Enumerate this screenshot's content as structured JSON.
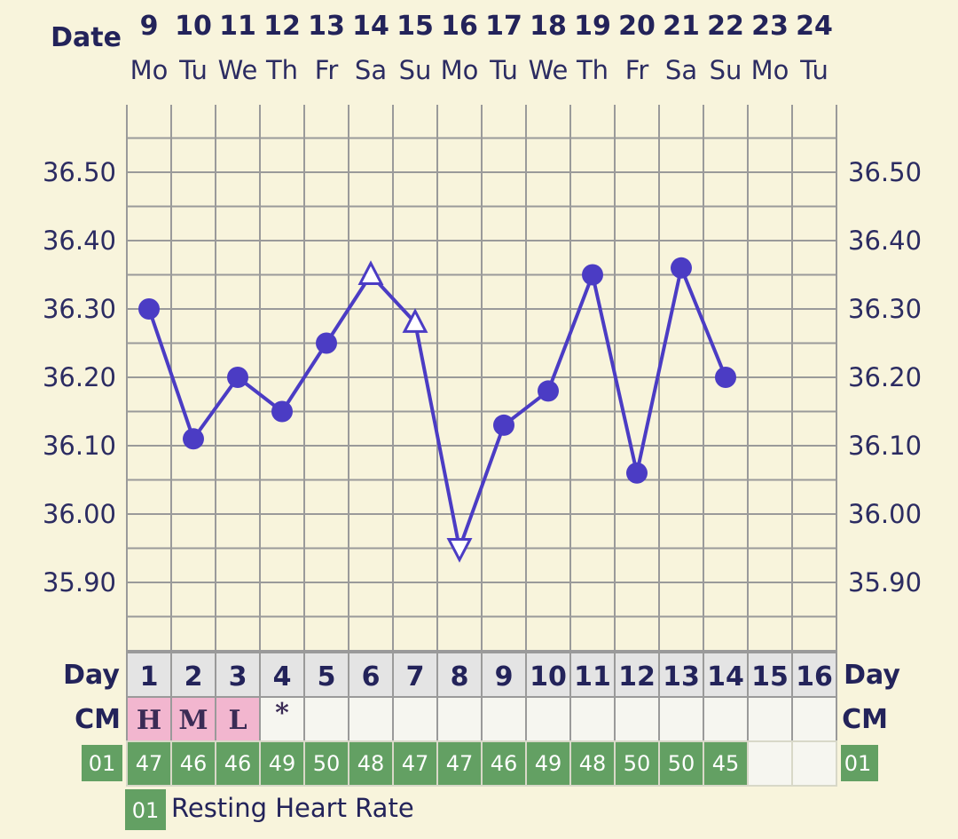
{
  "header": {
    "date_label": "Date",
    "day_label": "Day",
    "cm_label": "CM"
  },
  "dates": [
    "9",
    "10",
    "11",
    "12",
    "13",
    "14",
    "15",
    "16",
    "17",
    "18",
    "19",
    "20",
    "21",
    "22",
    "23",
    "24"
  ],
  "weekdays": [
    "Mo",
    "Tu",
    "We",
    "Th",
    "Fr",
    "Sa",
    "Su",
    "Mo",
    "Tu",
    "We",
    "Th",
    "Fr",
    "Sa",
    "Su",
    "Mo",
    "Tu"
  ],
  "cycle_days": [
    "1",
    "2",
    "3",
    "4",
    "5",
    "6",
    "7",
    "8",
    "9",
    "10",
    "11",
    "12",
    "13",
    "14",
    "15",
    "16"
  ],
  "cm": [
    "H",
    "M",
    "L",
    "*",
    "",
    "",
    "",
    "",
    "",
    "",
    "",
    "",
    "",
    "",
    "",
    ""
  ],
  "heart_rate": {
    "badge_left": "01",
    "badge_right": "01",
    "values": [
      "47",
      "46",
      "46",
      "49",
      "50",
      "48",
      "47",
      "47",
      "46",
      "49",
      "48",
      "50",
      "50",
      "45",
      "",
      ""
    ]
  },
  "legend": {
    "badge": "01",
    "text": "Resting Heart Rate"
  },
  "colors": {
    "background": "#f8f4dc",
    "line": "#4b3cc4",
    "grid": "#9a9a9a",
    "cm_highlight": "#f2b6cf",
    "hr_green": "#63a063",
    "day_row": "#e4e4e4"
  },
  "chart_data": {
    "type": "line",
    "x": [
      "9",
      "10",
      "11",
      "12",
      "13",
      "14",
      "15",
      "16",
      "17",
      "18",
      "19",
      "20",
      "21",
      "22"
    ],
    "y": [
      36.3,
      36.11,
      36.2,
      36.15,
      36.25,
      36.35,
      36.28,
      35.95,
      36.13,
      36.18,
      36.35,
      36.06,
      36.36,
      36.2
    ],
    "markers": [
      "circle",
      "circle",
      "circle",
      "circle",
      "circle",
      "triangle-up",
      "triangle-up",
      "triangle-down",
      "circle",
      "circle",
      "circle",
      "circle",
      "circle",
      "circle"
    ],
    "yticks": [
      "36.50",
      "36.40",
      "36.30",
      "36.20",
      "36.10",
      "36.00",
      "35.90"
    ],
    "ylim": [
      35.8,
      36.6
    ],
    "grid": true
  }
}
